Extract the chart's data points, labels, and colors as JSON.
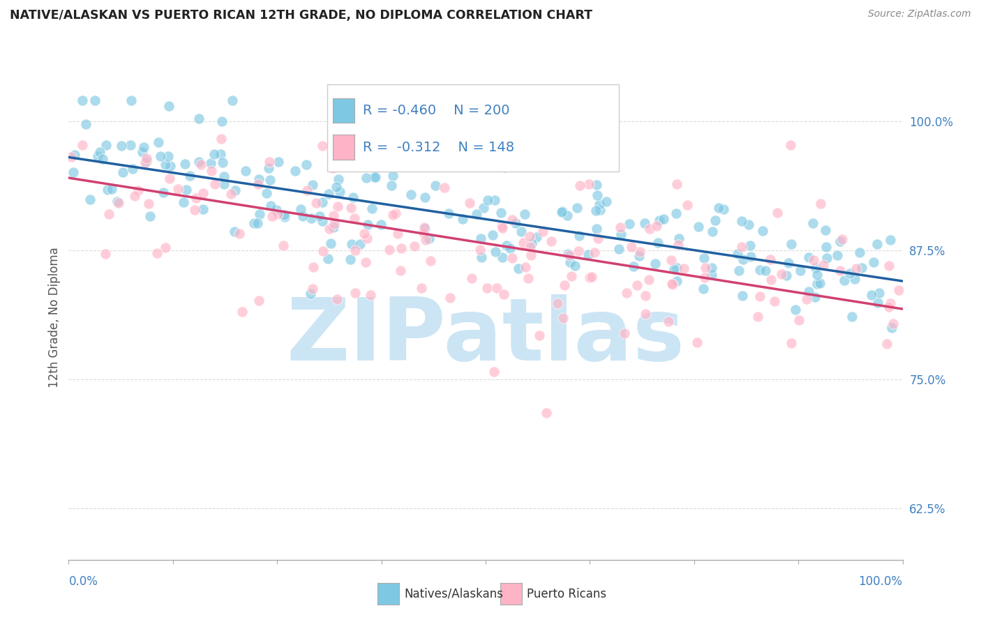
{
  "title": "NATIVE/ALASKAN VS PUERTO RICAN 12TH GRADE, NO DIPLOMA CORRELATION CHART",
  "source": "Source: ZipAtlas.com",
  "ylabel": "12th Grade, No Diploma",
  "legend_label1": "Natives/Alaskans",
  "legend_label2": "Puerto Ricans",
  "R1": -0.46,
  "N1": 200,
  "R2": -0.312,
  "N2": 148,
  "color_blue": "#7ec8e3",
  "color_pink": "#ffb3c6",
  "color_line_blue": "#2060a0",
  "color_line_pink": "#d04070",
  "color_ytick": "#4080c0",
  "ytick_labels": [
    "62.5%",
    "75.0%",
    "87.5%",
    "100.0%"
  ],
  "ytick_values": [
    0.625,
    0.75,
    0.875,
    1.0
  ],
  "xmin": 0.0,
  "xmax": 1.0,
  "ymin": 0.575,
  "ymax": 1.045,
  "background_color": "#ffffff",
  "watermark": "ZIPatlas",
  "watermark_color": "#cce5f5",
  "seed1": 42,
  "seed2": 123,
  "blue_line_x0": 0.0,
  "blue_line_x1": 1.0,
  "blue_line_y0": 0.965,
  "blue_line_y1": 0.845,
  "pink_line_x0": 0.0,
  "pink_line_x1": 1.0,
  "pink_line_y0": 0.945,
  "pink_line_y1": 0.818,
  "blue_noise": 0.03,
  "pink_noise": 0.048
}
